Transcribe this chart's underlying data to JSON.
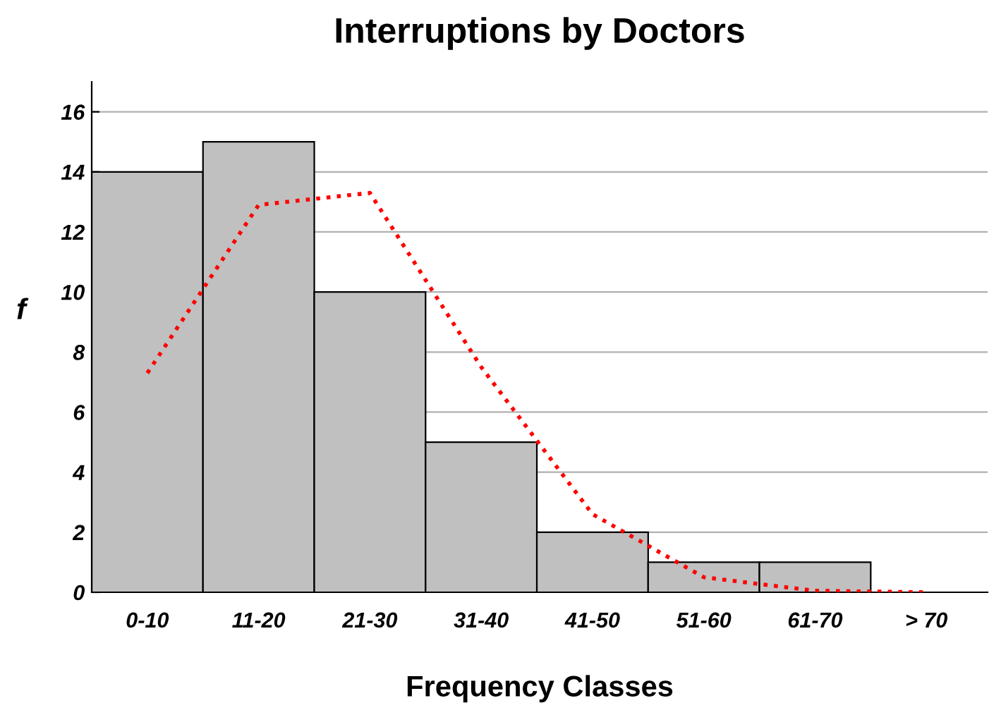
{
  "chart_data": {
    "type": "bar",
    "title": "Interruptions by Doctors",
    "xlabel": "Frequency Classes",
    "ylabel": "f",
    "categories": [
      "0-10",
      "11-20",
      "21-30",
      "31-40",
      "41-50",
      "51-60",
      "61-70",
      "> 70"
    ],
    "series": [
      {
        "color": "#c0c0c0",
        "values": [
          14,
          15,
          10,
          5,
          2,
          1,
          1,
          0
        ]
      },
      {
        "type": "line",
        "color": "#ff0000",
        "line_style": "dotted",
        "values": [
          7.3,
          12.9,
          13.3,
          7.5,
          2.6,
          0.5,
          0.05,
          0
        ]
      }
    ],
    "ylim": [
      0,
      17
    ],
    "yticks": [
      0,
      2,
      4,
      6,
      8,
      10,
      12,
      14,
      16
    ],
    "grid": "y"
  }
}
